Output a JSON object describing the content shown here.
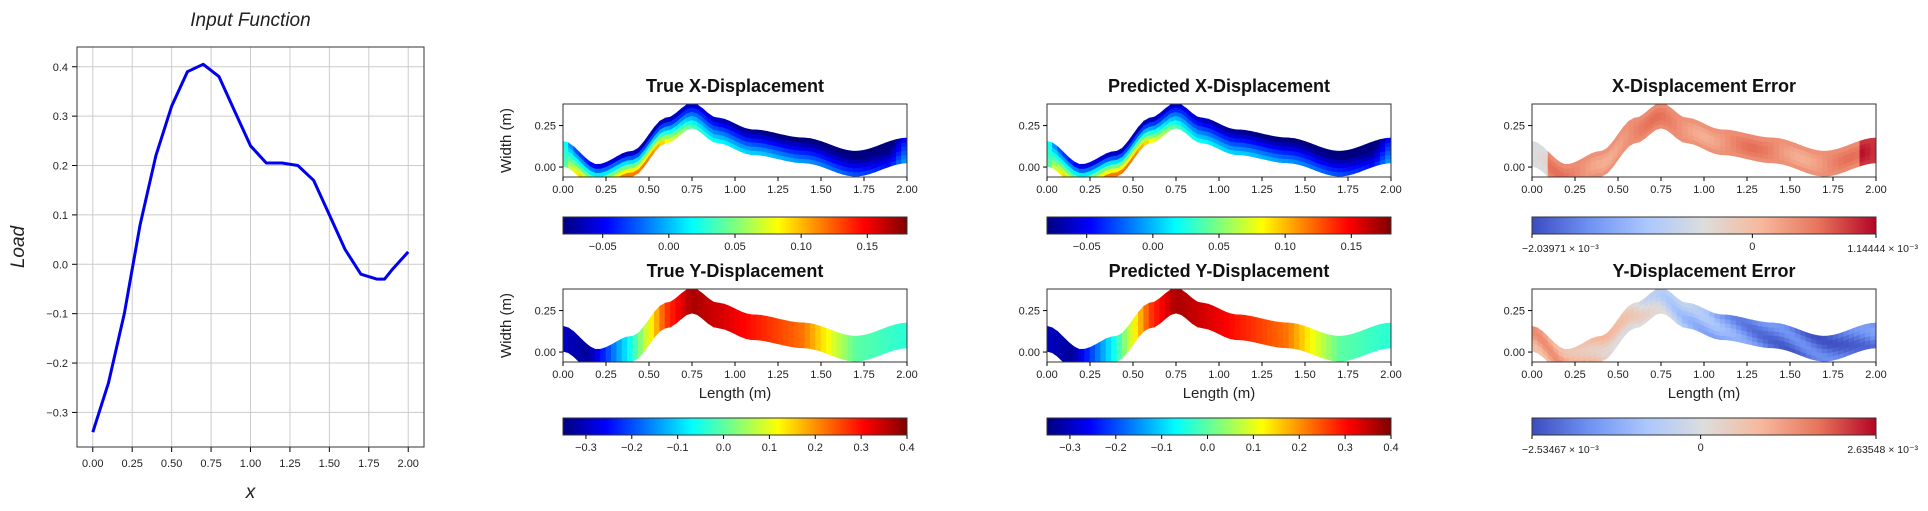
{
  "palettes": {
    "jet": [
      "#00007f",
      "#0000ff",
      "#007fff",
      "#00ffff",
      "#7fff7f",
      "#ffff00",
      "#ff7f00",
      "#ff0000",
      "#7f0000"
    ],
    "coolwarm": [
      "#3b4cc0",
      "#6f92f3",
      "#aac7fd",
      "#dddddd",
      "#f7b89c",
      "#e7745b",
      "#b40426"
    ],
    "line": "#0000ee",
    "grid": "#cccccc",
    "axis": "#000000"
  },
  "chart_data": [
    {
      "id": "input",
      "type": "line",
      "title": "Input Function",
      "xlabel": "x",
      "ylabel": "Load",
      "xlim": [
        -0.1,
        2.1
      ],
      "ylim": [
        -0.37,
        0.44
      ],
      "grid": true,
      "xticks": [
        0.0,
        0.25,
        0.5,
        0.75,
        1.0,
        1.25,
        1.5,
        1.75,
        2.0
      ],
      "xtick_labels": [
        "0.00",
        "0.25",
        "0.50",
        "0.75",
        "1.00",
        "1.25",
        "1.50",
        "1.75",
        "2.00"
      ],
      "yticks": [
        -0.3,
        -0.2,
        -0.1,
        0.0,
        0.1,
        0.2,
        0.3,
        0.4
      ],
      "ytick_labels": [
        "−0.3",
        "−0.2",
        "−0.1",
        "0.0",
        "0.1",
        "0.2",
        "0.3",
        "0.4"
      ],
      "x": [
        0.0,
        0.1,
        0.2,
        0.3,
        0.4,
        0.5,
        0.6,
        0.7,
        0.8,
        0.9,
        1.0,
        1.1,
        1.2,
        1.3,
        1.4,
        1.5,
        1.6,
        1.7,
        1.8,
        1.85,
        1.9,
        2.0
      ],
      "y": [
        -0.34,
        -0.24,
        -0.1,
        0.08,
        0.22,
        0.32,
        0.39,
        0.405,
        0.38,
        0.31,
        0.24,
        0.205,
        0.205,
        0.2,
        0.17,
        0.1,
        0.03,
        -0.02,
        -0.03,
        -0.03,
        -0.01,
        0.025
      ]
    },
    {
      "id": "true-x",
      "type": "heatmap",
      "title": "True X-Displacement",
      "xlabel": "",
      "ylabel": "Width (m)",
      "xlim": [
        0,
        2
      ],
      "ylim": [
        -0.06,
        0.38
      ],
      "xticks": [
        0.0,
        0.25,
        0.5,
        0.75,
        1.0,
        1.25,
        1.5,
        1.75,
        2.0
      ],
      "xtick_labels": [
        "0.00",
        "0.25",
        "0.50",
        "0.75",
        "1.00",
        "1.25",
        "1.50",
        "1.75",
        "2.00"
      ],
      "yticks": [
        0.0,
        0.25
      ],
      "ytick_labels": [
        "0.00",
        "0.25"
      ],
      "colormap": "jet",
      "vmin": -0.08,
      "vmax": 0.18,
      "colorbar_ticks": [
        -0.05,
        0.0,
        0.05,
        0.1,
        0.15
      ],
      "colorbar_labels": [
        "−0.05",
        "0.00",
        "0.05",
        "0.10",
        "0.15"
      ],
      "colorbar_ends": [
        "",
        ""
      ]
    },
    {
      "id": "pred-x",
      "type": "heatmap",
      "title": "Predicted X-Displacement",
      "xlabel": "",
      "ylabel": "",
      "xlim": [
        0,
        2
      ],
      "ylim": [
        -0.06,
        0.38
      ],
      "xticks": [
        0.0,
        0.25,
        0.5,
        0.75,
        1.0,
        1.25,
        1.5,
        1.75,
        2.0
      ],
      "xtick_labels": [
        "0.00",
        "0.25",
        "0.50",
        "0.75",
        "1.00",
        "1.25",
        "1.50",
        "1.75",
        "2.00"
      ],
      "yticks": [
        0.0,
        0.25
      ],
      "ytick_labels": [
        "0.00",
        "0.25"
      ],
      "colormap": "jet",
      "vmin": -0.08,
      "vmax": 0.18,
      "colorbar_ticks": [
        -0.05,
        0.0,
        0.05,
        0.1,
        0.15
      ],
      "colorbar_labels": [
        "−0.05",
        "0.00",
        "0.05",
        "0.10",
        "0.15"
      ],
      "colorbar_ends": [
        "",
        ""
      ]
    },
    {
      "id": "err-x",
      "type": "heatmap",
      "title": "X-Displacement Error",
      "xlabel": "",
      "ylabel": "",
      "xlim": [
        0,
        2
      ],
      "ylim": [
        -0.06,
        0.38
      ],
      "xticks": [
        0.0,
        0.25,
        0.5,
        0.75,
        1.0,
        1.25,
        1.5,
        1.75,
        2.0
      ],
      "xtick_labels": [
        "0.00",
        "0.25",
        "0.50",
        "0.75",
        "1.00",
        "1.25",
        "1.50",
        "1.75",
        "2.00"
      ],
      "yticks": [
        0.0,
        0.25
      ],
      "ytick_labels": [
        "0.00",
        "0.25"
      ],
      "colormap": "coolwarm",
      "vmin": -0.00203971,
      "vmax": 0.00114444,
      "colorbar_ticks": [
        0
      ],
      "colorbar_labels": [
        "0"
      ],
      "colorbar_ends": [
        "−2.03971 × 10⁻³",
        "1.14444 × 10⁻³"
      ]
    },
    {
      "id": "true-y",
      "type": "heatmap",
      "title": "True Y-Displacement",
      "xlabel": "Length (m)",
      "ylabel": "Width (m)",
      "xlim": [
        0,
        2
      ],
      "ylim": [
        -0.06,
        0.38
      ],
      "xticks": [
        0.0,
        0.25,
        0.5,
        0.75,
        1.0,
        1.25,
        1.5,
        1.75,
        2.0
      ],
      "xtick_labels": [
        "0.00",
        "0.25",
        "0.50",
        "0.75",
        "1.00",
        "1.25",
        "1.50",
        "1.75",
        "2.00"
      ],
      "yticks": [
        0.0,
        0.25
      ],
      "ytick_labels": [
        "0.00",
        "0.25"
      ],
      "colormap": "jet",
      "vmin": -0.35,
      "vmax": 0.4,
      "colorbar_ticks": [
        -0.3,
        -0.2,
        -0.1,
        0.0,
        0.1,
        0.2,
        0.3,
        0.4
      ],
      "colorbar_labels": [
        "−0.3",
        "−0.2",
        "−0.1",
        "0.0",
        "0.1",
        "0.2",
        "0.3",
        "0.4"
      ],
      "colorbar_ends": [
        "",
        ""
      ]
    },
    {
      "id": "pred-y",
      "type": "heatmap",
      "title": "Predicted Y-Displacement",
      "xlabel": "Length (m)",
      "ylabel": "",
      "xlim": [
        0,
        2
      ],
      "ylim": [
        -0.06,
        0.38
      ],
      "xticks": [
        0.0,
        0.25,
        0.5,
        0.75,
        1.0,
        1.25,
        1.5,
        1.75,
        2.0
      ],
      "xtick_labels": [
        "0.00",
        "0.25",
        "0.50",
        "0.75",
        "1.00",
        "1.25",
        "1.50",
        "1.75",
        "2.00"
      ],
      "yticks": [
        0.0,
        0.25
      ],
      "ytick_labels": [
        "0.00",
        "0.25"
      ],
      "colormap": "jet",
      "vmin": -0.35,
      "vmax": 0.4,
      "colorbar_ticks": [
        -0.3,
        -0.2,
        -0.1,
        0.0,
        0.1,
        0.2,
        0.3,
        0.4
      ],
      "colorbar_labels": [
        "−0.3",
        "−0.2",
        "−0.1",
        "0.0",
        "0.1",
        "0.2",
        "0.3",
        "0.4"
      ],
      "colorbar_ends": [
        "",
        ""
      ]
    },
    {
      "id": "err-y",
      "type": "heatmap",
      "title": "Y-Displacement Error",
      "xlabel": "Length (m)",
      "ylabel": "",
      "xlim": [
        0,
        2
      ],
      "ylim": [
        -0.06,
        0.38
      ],
      "xticks": [
        0.0,
        0.25,
        0.5,
        0.75,
        1.0,
        1.25,
        1.5,
        1.75,
        2.0
      ],
      "xtick_labels": [
        "0.00",
        "0.25",
        "0.50",
        "0.75",
        "1.00",
        "1.25",
        "1.50",
        "1.75",
        "2.00"
      ],
      "yticks": [
        0.0,
        0.25
      ],
      "ytick_labels": [
        "0.00",
        "0.25"
      ],
      "colormap": "coolwarm",
      "vmin": -0.00253467,
      "vmax": 0.00263548,
      "colorbar_ticks": [
        0
      ],
      "colorbar_labels": [
        "0"
      ],
      "colorbar_ends": [
        "−2.53467 × 10⁻³",
        "2.63548 × 10⁻³"
      ]
    }
  ]
}
